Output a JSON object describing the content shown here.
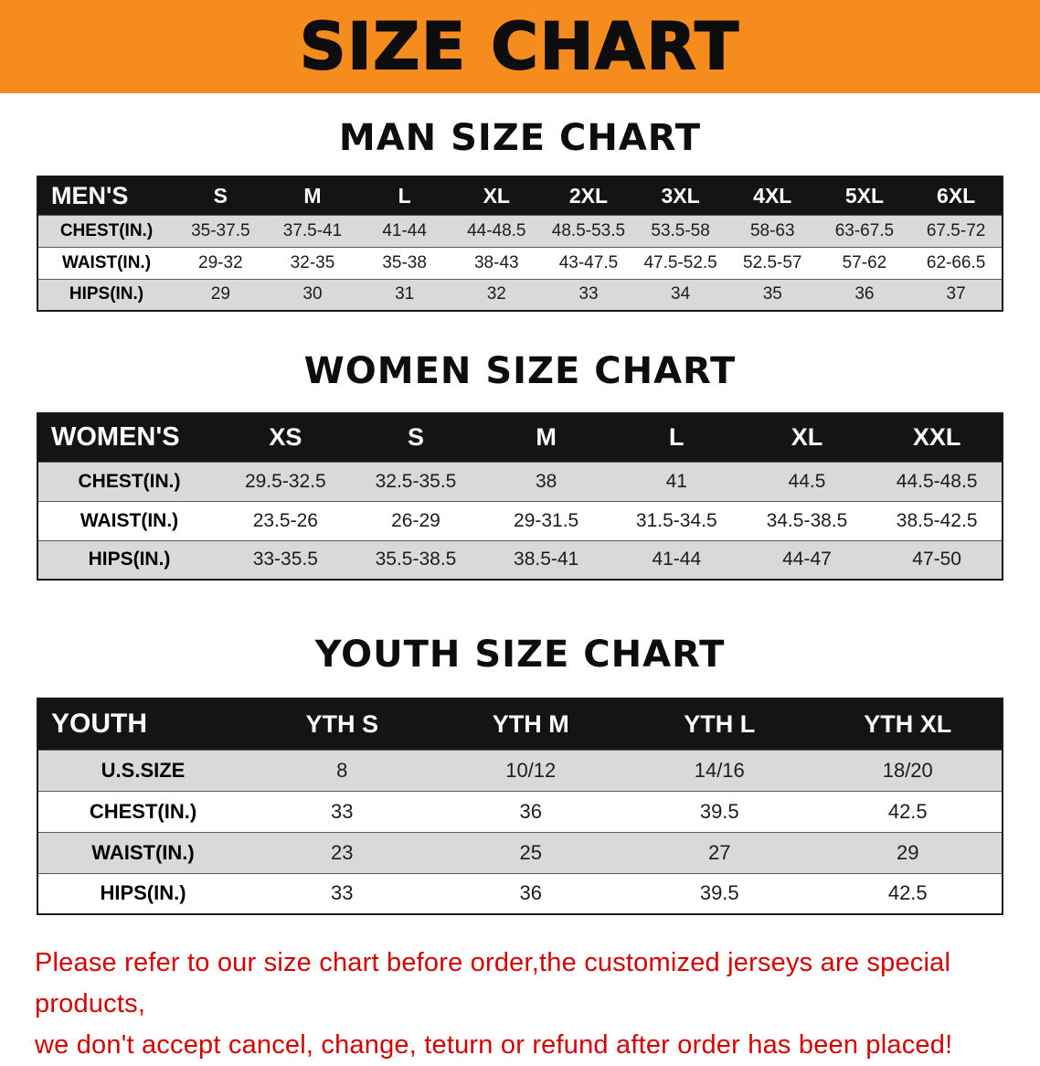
{
  "banner": {
    "title": "SIZE CHART",
    "bg_color": "#f68b1e",
    "text_color": "#0d0d0d"
  },
  "sections": {
    "men": {
      "heading": "MAN SIZE CHART",
      "header": [
        "MEN'S",
        "S",
        "M",
        "L",
        "XL",
        "2XL",
        "3XL",
        "4XL",
        "5XL",
        "6XL"
      ],
      "rows": [
        [
          "CHEST(IN.)",
          "35-37.5",
          "37.5-41",
          "41-44",
          "44-48.5",
          "48.5-53.5",
          "53.5-58",
          "58-63",
          "63-67.5",
          "67.5-72"
        ],
        [
          "WAIST(IN.)",
          "29-32",
          "32-35",
          "35-38",
          "38-43",
          "43-47.5",
          "47.5-52.5",
          "52.5-57",
          "57-62",
          "62-66.5"
        ],
        [
          "HIPS(IN.)",
          "29",
          "30",
          "31",
          "32",
          "33",
          "34",
          "35",
          "36",
          "37"
        ]
      ]
    },
    "women": {
      "heading": "WOMEN SIZE CHART",
      "header": [
        "WOMEN'S",
        "XS",
        "S",
        "M",
        "L",
        "XL",
        "XXL"
      ],
      "rows": [
        [
          "CHEST(IN.)",
          "29.5-32.5",
          "32.5-35.5",
          "38",
          "41",
          "44.5",
          "44.5-48.5"
        ],
        [
          "WAIST(IN.)",
          "23.5-26",
          "26-29",
          "29-31.5",
          "31.5-34.5",
          "34.5-38.5",
          "38.5-42.5"
        ],
        [
          "HIPS(IN.)",
          "33-35.5",
          "35.5-38.5",
          "38.5-41",
          "41-44",
          "44-47",
          "47-50"
        ]
      ]
    },
    "youth": {
      "heading": "YOUTH SIZE CHART",
      "header": [
        "YOUTH",
        "YTH S",
        "YTH M",
        "YTH L",
        "YTH XL"
      ],
      "rows": [
        [
          "U.S.SIZE",
          "8",
          "10/12",
          "14/16",
          "18/20"
        ],
        [
          "CHEST(IN.)",
          "33",
          "36",
          "39.5",
          "42.5"
        ],
        [
          "WAIST(IN.)",
          "23",
          "25",
          "27",
          "29"
        ],
        [
          "HIPS(IN.)",
          "33",
          "36",
          "39.5",
          "42.5"
        ]
      ]
    }
  },
  "note": {
    "line1": "Please refer to our size chart before order,the customized jerseys are special products,",
    "line2": "we don't accept cancel, change, teturn or refund after order has been placed!",
    "color": "#d40000"
  }
}
